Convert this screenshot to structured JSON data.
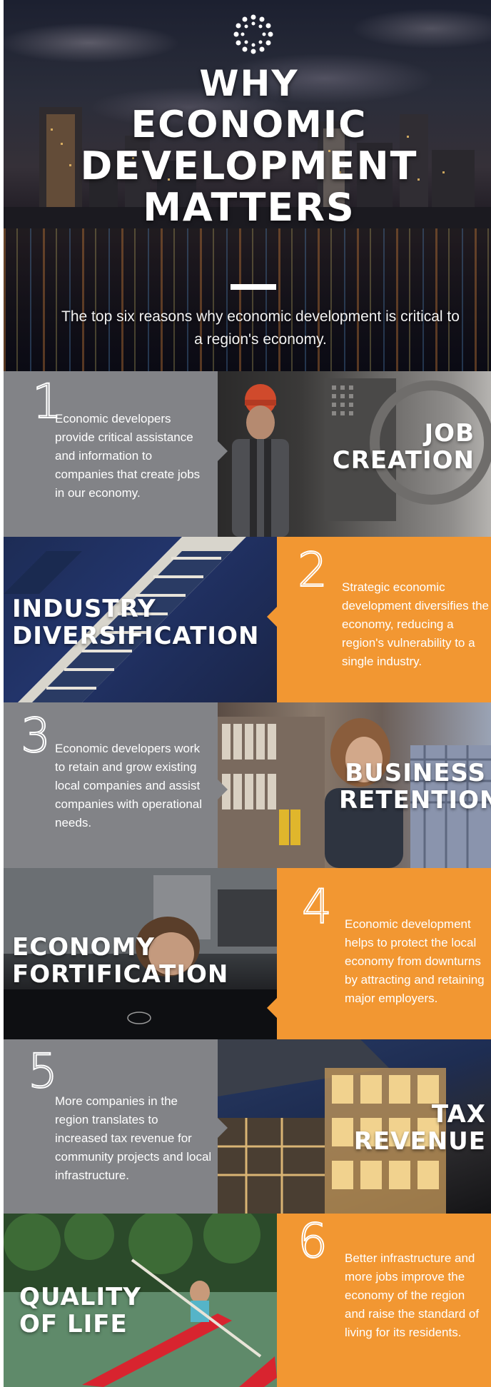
{
  "header": {
    "title_lines": [
      "WHY",
      "ECONOMIC",
      "DEVELOPMENT",
      "MATTERS"
    ],
    "subtitle": "The top six reasons why economic development is critical to a region's economy.",
    "logo_icon": "dotted-circle-icon"
  },
  "colors": {
    "gray_panel": "#828387",
    "orange_panel": "#f29732",
    "text": "#ffffff"
  },
  "reasons": [
    {
      "number": "1",
      "heading": [
        "JOB",
        "CREATION"
      ],
      "description": "Economic developers provide critical assistance and information to companies that create jobs in our economy."
    },
    {
      "number": "2",
      "heading": [
        "INDUSTRY",
        "DIVERSIFICATION"
      ],
      "description": "Strategic economic development diversifies the economy, reducing a region's vulnerability to a single industry."
    },
    {
      "number": "3",
      "heading": [
        "BUSINESS",
        "RETENTION"
      ],
      "description": "Economic developers work to retain and grow existing local companies and assist companies with operational needs."
    },
    {
      "number": "4",
      "heading": [
        "ECONOMY",
        "FORTIFICATION"
      ],
      "description": "Economic development helps to protect the local economy from downturns by attracting and retaining major employers."
    },
    {
      "number": "5",
      "heading": [
        "TAX",
        "REVENUE"
      ],
      "description": "More companies in the region translates to increased tax revenue for community projects and local infrastructure."
    },
    {
      "number": "6",
      "heading": [
        "QUALITY",
        "OF LIFE"
      ],
      "description": "Better infrastructure and more jobs improve the economy of the region and raise the standard of living for its residents."
    }
  ]
}
